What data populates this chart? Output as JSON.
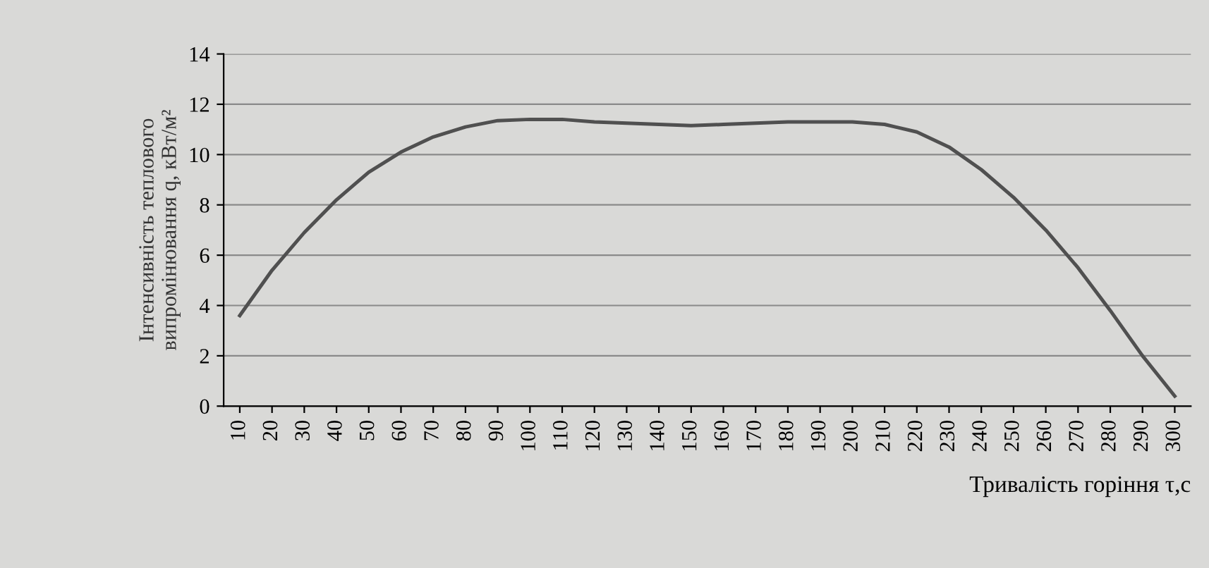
{
  "chart_data": {
    "type": "line",
    "ylabel": "Інтенсивність теплового\nвипромінювання q, кВт/м²",
    "xlabel": "Тривалість горіння τ,c",
    "categories": [
      "10",
      "20",
      "30",
      "40",
      "50",
      "60",
      "70",
      "80",
      "90",
      "100",
      "110",
      "120",
      "130",
      "140",
      "150",
      "160",
      "170",
      "180",
      "190",
      "200",
      "210",
      "220",
      "230",
      "240",
      "250",
      "260",
      "270",
      "280",
      "290",
      "300"
    ],
    "series": [
      {
        "color": "#505050",
        "values": [
          3.6,
          5.4,
          6.9,
          8.2,
          9.3,
          10.1,
          10.7,
          11.1,
          11.35,
          11.4,
          11.4,
          11.3,
          11.25,
          11.2,
          11.15,
          11.2,
          11.25,
          11.3,
          11.3,
          11.3,
          11.2,
          10.9,
          10.3,
          9.4,
          8.3,
          7.0,
          5.5,
          3.8,
          2.0,
          0.4
        ]
      }
    ],
    "ylim": [
      0,
      14
    ],
    "yticks": [
      0,
      2,
      4,
      6,
      8,
      10,
      12,
      14
    ],
    "grid": "y",
    "legend": false,
    "marker": "none",
    "line_style": "solid"
  }
}
